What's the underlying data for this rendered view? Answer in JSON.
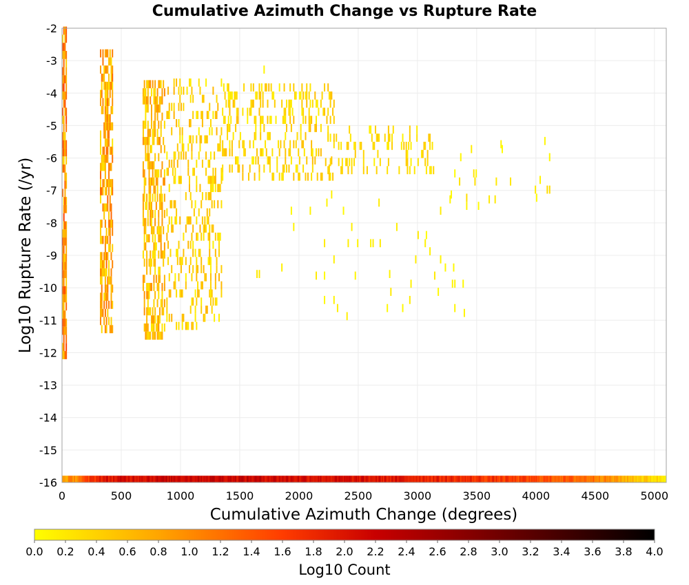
{
  "chart_data": {
    "type": "heatmap",
    "title": "Cumulative Azimuth Change vs Rupture Rate",
    "xlabel": "Cumulative Azimuth Change (degrees)",
    "ylabel": "Log10 Rupture Rate (/yr)",
    "xlim": [
      0,
      5100
    ],
    "ylim": [
      -16,
      -2
    ],
    "x_ticks": [
      "0",
      "500",
      "1000",
      "1500",
      "2000",
      "2500",
      "3000",
      "3500",
      "4000",
      "4500",
      "5000"
    ],
    "y_ticks": [
      "-2",
      "-3",
      "-4",
      "-5",
      "-6",
      "-7",
      "-8",
      "-9",
      "-10",
      "-11",
      "-12",
      "-13",
      "-14",
      "-15",
      "-16"
    ],
    "grid": true,
    "colorbar": {
      "label": "Log10 Count",
      "min": 0.0,
      "max": 4.0,
      "ticks": [
        "0.0",
        "0.2",
        "0.4",
        "0.6",
        "0.8",
        "1.0",
        "1.2",
        "1.4",
        "1.6",
        "1.8",
        "2.0",
        "2.2",
        "2.4",
        "2.6",
        "2.8",
        "3.0",
        "3.2",
        "3.4",
        "3.6",
        "3.8",
        "4.0"
      ],
      "colors": [
        "#ffff00",
        "#ffa500",
        "#ff3c00",
        "#c80000",
        "#5a0000",
        "#000000"
      ]
    },
    "cell_size": {
      "x": 10,
      "y": 0.25
    },
    "clusters": [
      {
        "x": [
          0,
          40
        ],
        "y": [
          -12.2,
          -2.1
        ],
        "v": [
          0.3,
          1.6
        ],
        "density": 0.75
      },
      {
        "x": [
          320,
          430
        ],
        "y": [
          -11.4,
          -2.8
        ],
        "v": [
          0.2,
          1.3
        ],
        "density": 0.55
      },
      {
        "x": [
          680,
          870
        ],
        "y": [
          -11.6,
          -3.6
        ],
        "v": [
          0.2,
          1.0
        ],
        "density": 0.5
      },
      {
        "x": [
          880,
          1350
        ],
        "y": [
          -11.3,
          -3.8
        ],
        "v": [
          0.1,
          0.7
        ],
        "density": 0.22
      },
      {
        "x": [
          1350,
          2300
        ],
        "y": [
          -6.7,
          -3.9
        ],
        "v": [
          0.1,
          0.6
        ],
        "density": 0.22
      },
      {
        "x": [
          2200,
          3150
        ],
        "y": [
          -6.5,
          -5.0
        ],
        "v": [
          0.1,
          0.5
        ],
        "density": 0.16
      },
      {
        "x": [
          1800,
          3400
        ],
        "y": [
          -11.0,
          -7.2
        ],
        "v": [
          0.0,
          0.2
        ],
        "density": 0.015
      },
      {
        "x": [
          3200,
          4150
        ],
        "y": [
          -7.6,
          -5.4
        ],
        "v": [
          0.0,
          0.3
        ],
        "density": 0.02
      }
    ],
    "points": [
      {
        "x": 1700,
        "y": -3.4,
        "v": 0.1
      },
      {
        "x": 1210,
        "y": -3.8,
        "v": 0.1
      },
      {
        "x": 1640,
        "y": -9.7,
        "v": 0.2
      },
      {
        "x": 1660,
        "y": -9.7,
        "v": 0.2
      },
      {
        "x": 2760,
        "y": -9.7,
        "v": 0.1
      },
      {
        "x": 3390,
        "y": -10.9,
        "v": 0.1
      },
      {
        "x": 3290,
        "y": -10.0,
        "v": 0.1
      },
      {
        "x": 3270,
        "y": -7.4,
        "v": 0.1
      },
      {
        "x": 3600,
        "y": -7.4,
        "v": 0.2
      },
      {
        "x": 3650,
        "y": -7.4,
        "v": 0.2
      },
      {
        "x": 3700,
        "y": -5.7,
        "v": 0.1
      },
      {
        "x": 4030,
        "y": -6.8,
        "v": 0.1
      },
      {
        "x": 4090,
        "y": -7.1,
        "v": 0.3
      },
      {
        "x": 4110,
        "y": -7.1,
        "v": 0.3
      }
    ],
    "bottom_band": {
      "y": -16,
      "x_range": [
        0,
        5100
      ],
      "profile_x": [
        0,
        100,
        300,
        600,
        1000,
        1500,
        2000,
        2500,
        3000,
        3500,
        4000,
        4500,
        4800,
        5100
      ],
      "profile_v": [
        0.8,
        1.0,
        1.9,
        2.1,
        2.2,
        2.2,
        2.1,
        2.0,
        1.9,
        1.7,
        1.5,
        1.2,
        0.6,
        0.2
      ]
    }
  }
}
